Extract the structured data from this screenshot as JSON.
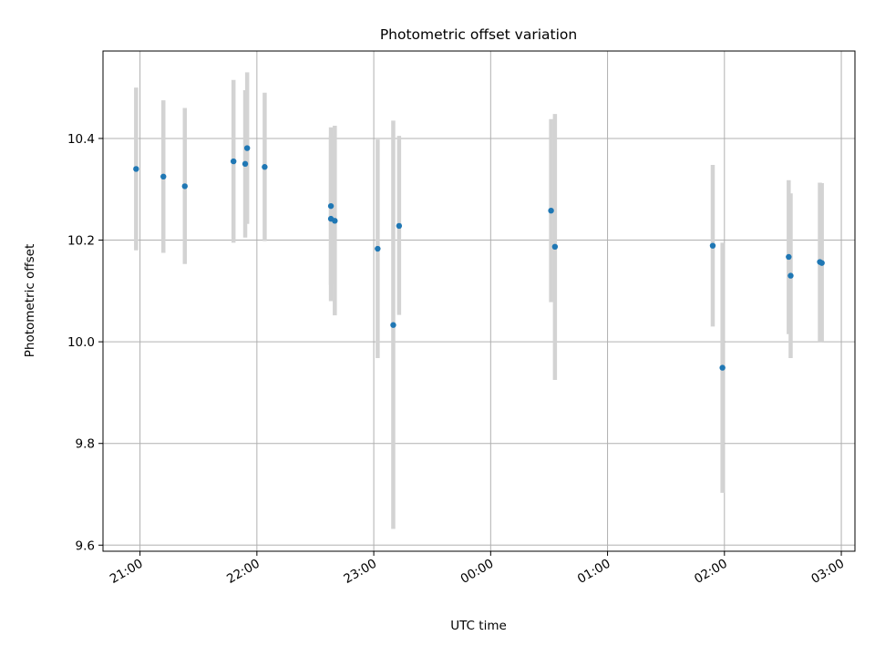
{
  "chart_data": {
    "type": "scatter",
    "title": "Photometric offset variation",
    "xlabel": "UTC time",
    "ylabel": "Photometric offset",
    "xaxis_kind": "time",
    "xlim": [
      "2000-01-01T20:41",
      "2000-01-02T03:07"
    ],
    "ylim": [
      9.588,
      10.572
    ],
    "grid": true,
    "x_ticks": [
      "21:00",
      "22:00",
      "23:00",
      "00:00",
      "01:00",
      "02:00",
      "03:00"
    ],
    "x_tick_values": [
      "2000-01-01T21:00",
      "2000-01-01T22:00",
      "2000-01-01T23:00",
      "2000-01-02T00:00",
      "2000-01-02T01:00",
      "2000-01-02T02:00",
      "2000-01-02T03:00"
    ],
    "y_ticks": [
      "9.6",
      "9.8",
      "10.0",
      "10.2",
      "10.4"
    ],
    "y_tick_values": [
      9.6,
      9.8,
      10.0,
      10.2,
      10.4
    ],
    "colors": {
      "points": "#1f77b4",
      "errorbars": "#d3d3d3",
      "grid": "#b0b0b0"
    },
    "series": [
      {
        "points": [
          {
            "x": "2000-01-01T20:58",
            "y": 10.34,
            "ylow": 10.18,
            "yhigh": 10.5
          },
          {
            "x": "2000-01-01T21:12",
            "y": 10.325,
            "ylow": 10.175,
            "yhigh": 10.475
          },
          {
            "x": "2000-01-01T21:23",
            "y": 10.306,
            "ylow": 10.153,
            "yhigh": 10.46
          },
          {
            "x": "2000-01-01T21:48",
            "y": 10.355,
            "ylow": 10.195,
            "yhigh": 10.515
          },
          {
            "x": "2000-01-01T21:54",
            "y": 10.35,
            "ylow": 10.205,
            "yhigh": 10.495
          },
          {
            "x": "2000-01-01T21:55",
            "y": 10.381,
            "ylow": 10.232,
            "yhigh": 10.53
          },
          {
            "x": "2000-01-01T22:04",
            "y": 10.344,
            "ylow": 10.198,
            "yhigh": 10.49
          },
          {
            "x": "2000-01-01T22:38",
            "y": 10.267,
            "ylow": 10.112,
            "yhigh": 10.422
          },
          {
            "x": "2000-01-01T22:38",
            "y": 10.242,
            "ylow": 10.08,
            "yhigh": 10.405
          },
          {
            "x": "2000-01-01T22:40",
            "y": 10.238,
            "ylow": 10.052,
            "yhigh": 10.425
          },
          {
            "x": "2000-01-01T23:02",
            "y": 10.183,
            "ylow": 9.968,
            "yhigh": 10.398
          },
          {
            "x": "2000-01-01T23:10",
            "y": 10.033,
            "ylow": 9.632,
            "yhigh": 10.435
          },
          {
            "x": "2000-01-01T23:13",
            "y": 10.228,
            "ylow": 10.053,
            "yhigh": 10.405
          },
          {
            "x": "2000-01-02T00:31",
            "y": 10.258,
            "ylow": 10.078,
            "yhigh": 10.438
          },
          {
            "x": "2000-01-02T00:33",
            "y": 10.187,
            "ylow": 9.925,
            "yhigh": 10.448
          },
          {
            "x": "2000-01-02T01:54",
            "y": 10.189,
            "ylow": 10.03,
            "yhigh": 10.348
          },
          {
            "x": "2000-01-02T01:59",
            "y": 9.949,
            "ylow": 9.703,
            "yhigh": 10.195
          },
          {
            "x": "2000-01-02T02:33",
            "y": 10.167,
            "ylow": 10.015,
            "yhigh": 10.318
          },
          {
            "x": "2000-01-02T02:34",
            "y": 10.13,
            "ylow": 9.968,
            "yhigh": 10.292
          },
          {
            "x": "2000-01-02T02:49",
            "y": 10.157,
            "ylow": 10.0,
            "yhigh": 10.313
          },
          {
            "x": "2000-01-02T02:50",
            "y": 10.155,
            "ylow": 10.0,
            "yhigh": 10.312
          }
        ]
      }
    ]
  }
}
